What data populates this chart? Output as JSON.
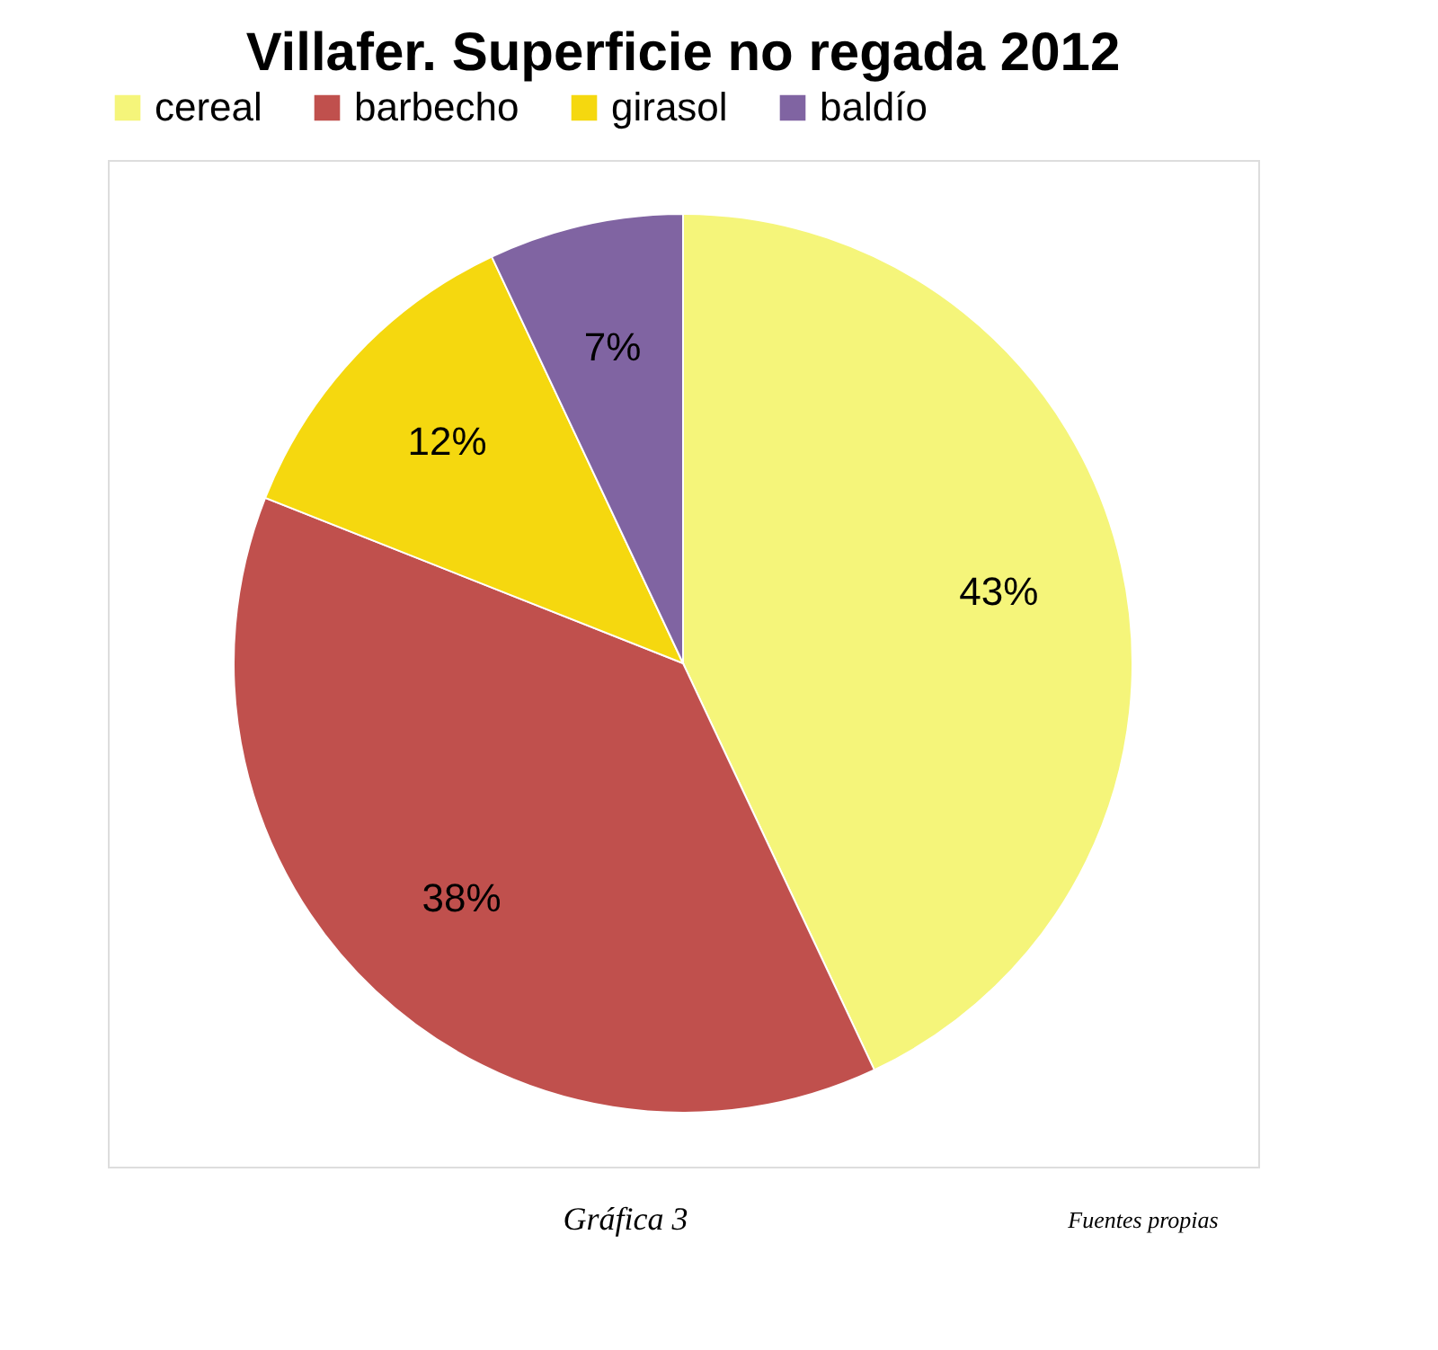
{
  "chart_data": {
    "type": "pie",
    "title": "Villafer.  Superficie no regada 2012",
    "categories": [
      "cereal",
      "barbecho",
      "girasol",
      "baldío"
    ],
    "values": [
      43,
      38,
      12,
      7
    ],
    "colors": [
      "#f5f57a",
      "#c0504d",
      "#f5d80f",
      "#8064a2"
    ],
    "value_labels": [
      "43%",
      "38%",
      "12%",
      "7%"
    ],
    "legend": "top",
    "annotations": [
      "Gráfica 3",
      "Fuentes propias"
    ]
  }
}
